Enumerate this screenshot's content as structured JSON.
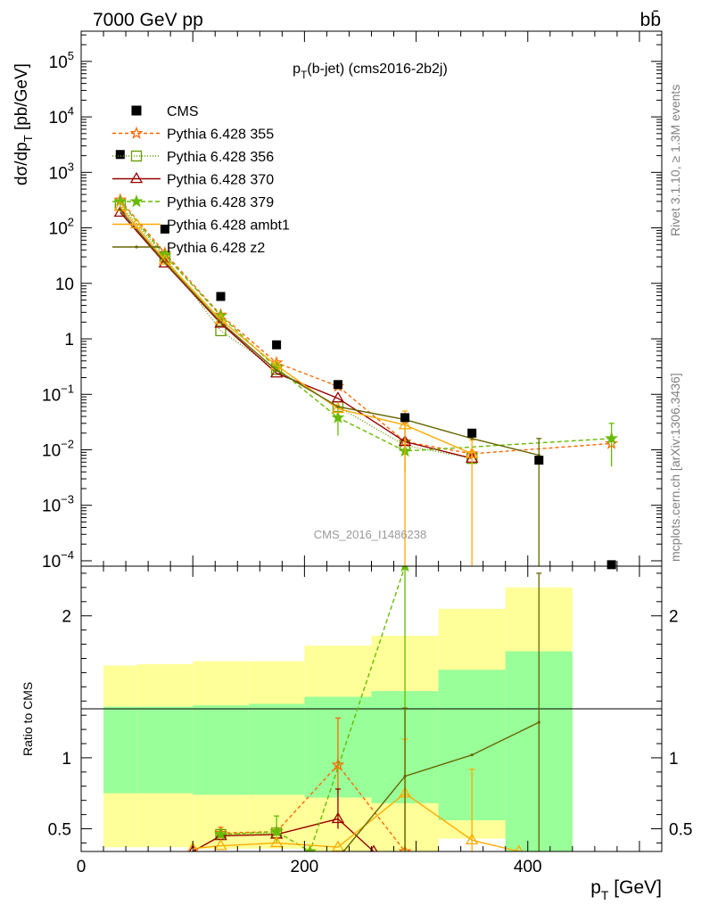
{
  "header": {
    "left": "7000 GeV pp",
    "right": "bb̄",
    "side_top": "Rivet 3.1.10, ≥ 1.3M events",
    "side_bottom": "mcplots.cern.ch [arXiv:1306.3436]"
  },
  "chart_data": [
    {
      "type": "line",
      "title": "p_T(b-jet) (cms2016-2b2j)",
      "watermark": "CMS_2016_I1486238",
      "ylabel": "dσ/dp_T [pb/GeV]",
      "xlim": [
        0,
        520
      ],
      "ylim": [
        8e-05,
        350000.0
      ],
      "yscale": "log",
      "ytick_values": [
        0.0001,
        0.001,
        0.01,
        0.1,
        1,
        10,
        100,
        1000,
        10000,
        100000
      ],
      "ytick_labels": [
        {
          "base": "10",
          "exp": "−4"
        },
        {
          "base": "10",
          "exp": "−3"
        },
        {
          "base": "10",
          "exp": "−2"
        },
        {
          "base": "10",
          "exp": "−1"
        },
        {
          "base": "1",
          "exp": ""
        },
        {
          "base": "10",
          "exp": ""
        },
        {
          "base": "10",
          "exp": "2"
        },
        {
          "base": "10",
          "exp": "3"
        },
        {
          "base": "10",
          "exp": "4"
        },
        {
          "base": "10",
          "exp": "5"
        }
      ],
      "legend_position": "top-left",
      "reference": {
        "name": "CMS",
        "color": "#000000",
        "x": [
          35,
          75,
          125,
          175,
          230,
          290,
          350,
          410,
          475
        ],
        "y": [
          2100,
          95,
          5.8,
          0.78,
          0.15,
          0.038,
          0.02,
          0.0065,
          8.5e-05
        ]
      },
      "series": [
        {
          "name": "Pythia 6.428 355",
          "color": "#ff6600",
          "dash": "4,3",
          "marker": "star-open",
          "x": [
            35,
            75,
            125,
            175,
            230,
            290,
            350,
            475
          ],
          "y": [
            320,
            35,
            2.7,
            0.37,
            0.14,
            0.014,
            0.0085,
            0.013
          ],
          "err_points": [
            [
              290,
              0.004,
              0.03
            ]
          ]
        },
        {
          "name": "Pythia 6.428 356",
          "color": "#669900",
          "dash": "1,2",
          "marker": "square-open",
          "x": [
            35,
            75,
            125,
            175,
            230,
            290,
            350
          ],
          "y": [
            260,
            30,
            1.4,
            0.28,
            0.06,
            0.012,
            0.007
          ]
        },
        {
          "name": "Pythia 6.428 370",
          "color": "#990000",
          "dash": "",
          "marker": "triangle-open",
          "x": [
            35,
            75,
            125,
            175,
            230,
            290,
            350
          ],
          "y": [
            190,
            23,
            1.9,
            0.24,
            0.085,
            0.014,
            0.007
          ]
        },
        {
          "name": "Pythia 6.428 379",
          "color": "#66bb00",
          "dash": "5,3",
          "marker": "star-filled",
          "x": [
            35,
            75,
            125,
            175,
            230,
            290,
            475
          ],
          "y": [
            300,
            32,
            2.6,
            0.3,
            0.038,
            0.0095,
            0.016
          ],
          "err_points": [
            [
              230,
              0.018,
              0.06
            ],
            [
              475,
              0.005,
              0.03
            ]
          ]
        },
        {
          "name": "Pythia 6.428 ambt1",
          "color": "#ffaa00",
          "dash": "",
          "marker": "triangle-open",
          "x": [
            35,
            75,
            125,
            175,
            230,
            290,
            350
          ],
          "y": [
            240,
            26,
            2.2,
            0.33,
            0.055,
            0.028,
            0.0085
          ],
          "err_points": [
            [
              290,
              8e-05,
              0.05
            ],
            [
              350,
              8e-05,
              0.015
            ]
          ]
        },
        {
          "name": "Pythia 6.428 z2",
          "color": "#666600",
          "dash": "",
          "marker": "dot",
          "x": [
            35,
            75,
            125,
            175,
            230,
            290,
            350,
            410
          ],
          "y": [
            210,
            24,
            2.0,
            0.27,
            0.06,
            0.035,
            0.016,
            0.008
          ],
          "err_points": [
            [
              410,
              8e-05,
              0.016
            ]
          ]
        }
      ]
    },
    {
      "type": "line",
      "ylabel": "Ratio to CMS",
      "xlabel": "p_T [GeV]",
      "xlim": [
        0,
        520
      ],
      "ylim": [
        0.34,
        2.35
      ],
      "xticks": [
        0,
        200,
        400
      ],
      "xtick_labels": [
        "0",
        "200",
        "400"
      ],
      "yticks": [
        0.5,
        1,
        2
      ],
      "ytick_labels": [
        "0.5",
        "1",
        "2"
      ],
      "bands": [
        {
          "x0": 20,
          "x1": 50,
          "green": [
            0.75,
            1.36
          ],
          "yellow": [
            0.37,
            1.65
          ]
        },
        {
          "x0": 50,
          "x1": 100,
          "green": [
            0.75,
            1.36
          ],
          "yellow": [
            0.37,
            1.66
          ]
        },
        {
          "x0": 100,
          "x1": 150,
          "green": [
            0.74,
            1.37
          ],
          "yellow": [
            0.36,
            1.68
          ]
        },
        {
          "x0": 150,
          "x1": 200,
          "green": [
            0.74,
            1.38
          ],
          "yellow": [
            0.36,
            1.68
          ]
        },
        {
          "x0": 200,
          "x1": 260,
          "green": [
            0.72,
            1.43
          ],
          "yellow": [
            0.34,
            1.79
          ]
        },
        {
          "x0": 260,
          "x1": 320,
          "green": [
            0.68,
            1.47
          ],
          "yellow": [
            0.34,
            1.86
          ]
        },
        {
          "x0": 320,
          "x1": 380,
          "green": [
            0.56,
            1.62
          ],
          "yellow": [
            0.43,
            2.05
          ]
        },
        {
          "x0": 380,
          "x1": 440,
          "green": [
            0.34,
            1.75
          ],
          "yellow": [
            0.34,
            2.2
          ]
        }
      ],
      "series": [
        {
          "name": "Pythia 6.428 355",
          "color": "#ff6600",
          "dash": "4,3",
          "marker": "star-open",
          "x": [
            125,
            175,
            230,
            290
          ],
          "y": [
            0.47,
            0.48,
            0.95,
            0.34
          ],
          "err_points": [
            [
              125,
              0.43,
              0.51
            ],
            [
              230,
              0.75,
              1.28
            ]
          ]
        },
        {
          "name": "Pythia 6.428 356",
          "color": "#669900",
          "dash": "1,2",
          "marker": "square-open",
          "x": [
            125,
            175
          ],
          "y": [
            0.46,
            0.47
          ]
        },
        {
          "name": "Pythia 6.428 370",
          "color": "#990000",
          "dash": "",
          "marker": "triangle-open",
          "x": [
            100,
            125,
            175,
            230,
            262
          ],
          "y": [
            0.34,
            0.45,
            0.46,
            0.57,
            0.34
          ],
          "err_points": [
            [
              230,
              0.5,
              0.78
            ]
          ]
        },
        {
          "name": "Pythia 6.428 379",
          "color": "#66bb00",
          "dash": "5,3",
          "marker": "star-filled",
          "x": [
            125,
            175,
            205,
            290
          ],
          "y": [
            0.46,
            0.48,
            0.34,
            2.35
          ],
          "err_points": [
            [
              175,
              0.4,
              0.59
            ],
            [
              290,
              0.34,
              2.35
            ]
          ]
        },
        {
          "name": "Pythia 6.428 ambt1",
          "color": "#ffaa00",
          "dash": "",
          "marker": "triangle-open",
          "x": [
            100,
            125,
            175,
            230,
            290,
            350,
            392
          ],
          "y": [
            0.36,
            0.38,
            0.4,
            0.37,
            0.75,
            0.42,
            0.34
          ],
          "err_points": [
            [
              290,
              0.37,
              1.13
            ],
            [
              350,
              0.34,
              0.92
            ]
          ]
        },
        {
          "name": "Pythia 6.428 z2",
          "color": "#666600",
          "dash": "",
          "marker": "dot",
          "x": [
            235,
            290,
            350,
            410
          ],
          "y": [
            0.34,
            0.87,
            1.02,
            1.25
          ],
          "err_points": [
            [
              290,
              0.34,
              1.35
            ],
            [
              410,
              0.34,
              2.3
            ]
          ]
        }
      ]
    }
  ]
}
